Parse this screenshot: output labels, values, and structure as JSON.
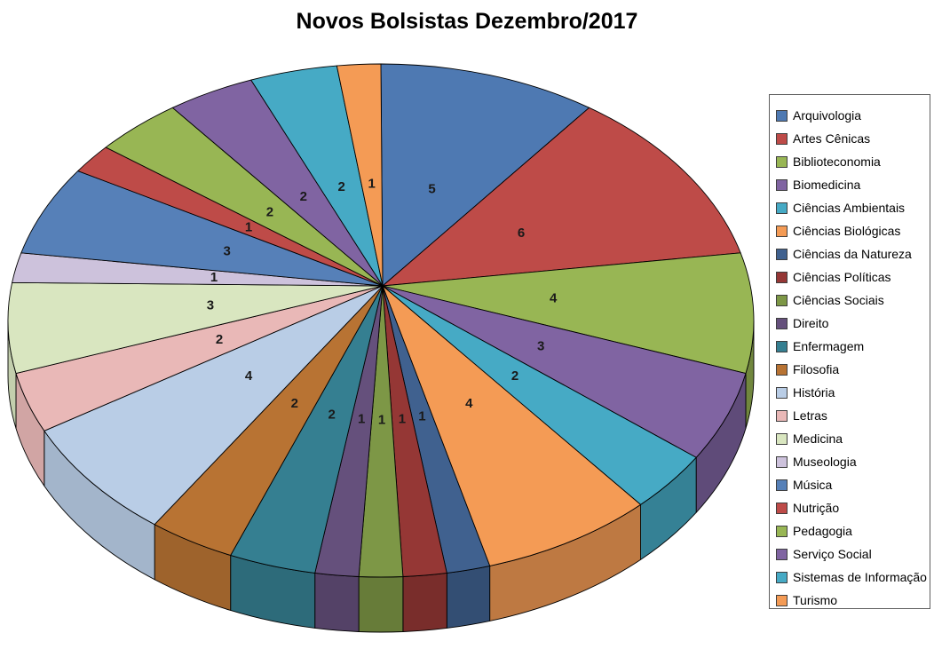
{
  "title": "Novos Bolsistas Dezembro/2017",
  "chart_data": {
    "type": "pie",
    "style": "3d-pie",
    "title": "Novos Bolsistas Dezembro/2017",
    "legend_position": "right",
    "start_angle_deg": -90,
    "direction": "clockwise",
    "data_labels": "values",
    "total": 53,
    "categories": [
      "Arquivologia",
      "Artes Cênicas",
      "Biblioteconomia",
      "Biomedicina",
      "Ciências Ambientais",
      "Ciências Biológicas",
      "Ciências da Natureza",
      "Ciências Políticas",
      "Ciências Sociais",
      "Direito",
      "Enfermagem",
      "Filosofia",
      "História",
      "Letras",
      "Medicina",
      "Museologia",
      "Música",
      "Nutrição",
      "Pedagogia",
      "Serviço Social",
      "Sistemas de Informação",
      "Turismo"
    ],
    "values": [
      5,
      6,
      4,
      3,
      2,
      4,
      1,
      1,
      1,
      1,
      2,
      2,
      4,
      2,
      3,
      1,
      3,
      1,
      2,
      2,
      2,
      1
    ],
    "colors": [
      "#4E79B2",
      "#BE4B48",
      "#98B654",
      "#8064A2",
      "#46AAC5",
      "#F49B55",
      "#40618F",
      "#953735",
      "#7D9746",
      "#65507C",
      "#357F91",
      "#B87333",
      "#B9CDE6",
      "#E9B8B7",
      "#D9E6C0",
      "#CDC2DC",
      "#5680B8",
      "#BE4B48",
      "#98B654",
      "#8064A2",
      "#46AAC5",
      "#F49B55"
    ]
  }
}
